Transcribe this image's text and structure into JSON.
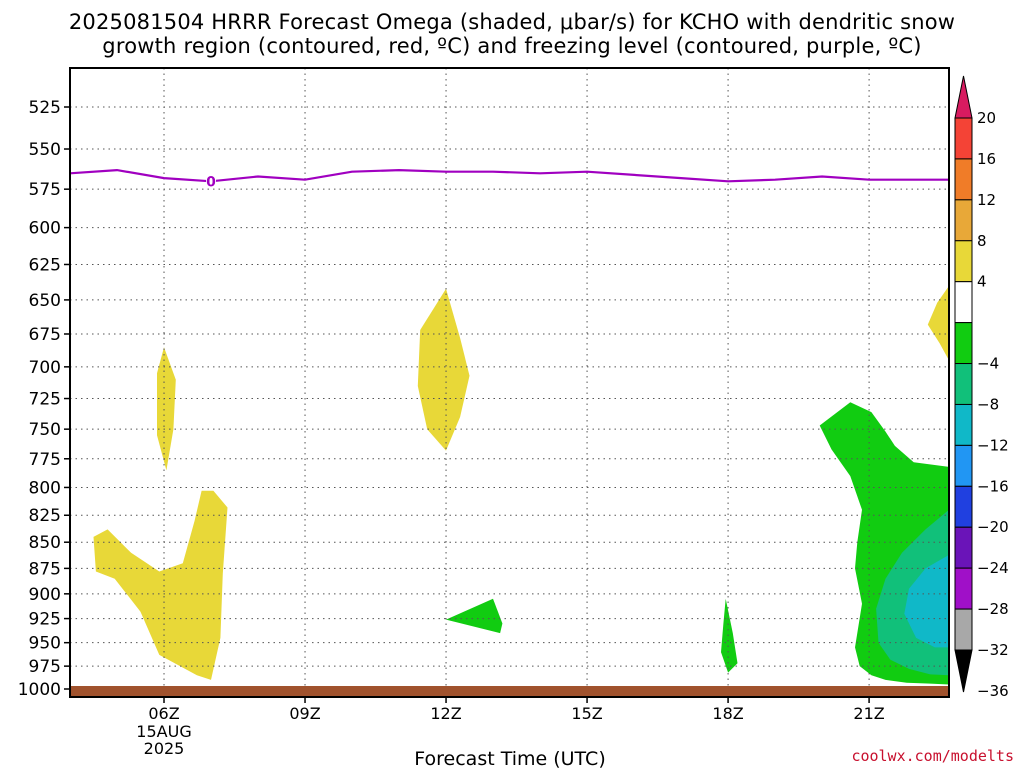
{
  "title_line1": "2025081504 HRRR Forecast Omega (shaded, μbar/s) for KCHO with dendritic snow",
  "title_line2": "growth region (contoured, red, ºC) and freezing level (contoured, purple, ºC)",
  "credit": "coolwx.com/modelts",
  "colors": {
    "freezing_level": "#a000c0",
    "ground": "#a0522d",
    "grid": "#555555"
  },
  "chart_data": {
    "type": "heatmap",
    "title": "2025081504 HRRR Forecast Omega (shaded, μbar/s) for KCHO with dendritic snow growth region (contoured, red, ºC) and freezing level (contoured, purple, ºC)",
    "xlabel": "Forecast Time (UTC)",
    "ylabel": "",
    "x_axis": {
      "unit": "forecast hour UTC (04Z 15 Aug 2025 to ~22.7Z)",
      "range": [
        4.0,
        22.7
      ],
      "ticks": [
        {
          "hour": 6,
          "label": "06Z",
          "sublabel": [
            "15AUG",
            "2025"
          ]
        },
        {
          "hour": 9,
          "label": "09Z"
        },
        {
          "hour": 12,
          "label": "12Z"
        },
        {
          "hour": 15,
          "label": "15Z"
        },
        {
          "hour": 18,
          "label": "18Z"
        },
        {
          "hour": 21,
          "label": "21Z"
        }
      ]
    },
    "y_axis": {
      "unit": "hPa",
      "scale": "log-pressure",
      "range": [
        1000,
        510
      ],
      "ticks": [
        525,
        550,
        575,
        600,
        625,
        650,
        675,
        700,
        725,
        750,
        775,
        800,
        825,
        850,
        875,
        900,
        925,
        950,
        975,
        1000
      ]
    },
    "grid": true,
    "colorbar": {
      "label_values": [
        20,
        16,
        12,
        8,
        4,
        -4,
        -8,
        -12,
        -16,
        -20,
        -24,
        -28,
        -32,
        -36
      ],
      "bins": [
        {
          "lo": 20,
          "hi": null,
          "color": "#d81b60"
        },
        {
          "lo": 16,
          "hi": 20,
          "color": "#f44336"
        },
        {
          "lo": 12,
          "hi": 16,
          "color": "#f07c28"
        },
        {
          "lo": 8,
          "hi": 12,
          "color": "#e8a838"
        },
        {
          "lo": 4,
          "hi": 8,
          "color": "#e8d838"
        },
        {
          "lo": -4,
          "hi": 4,
          "color": "#ffffff"
        },
        {
          "lo": -8,
          "hi": -4,
          "color": "#11cc11"
        },
        {
          "lo": -12,
          "hi": -8,
          "color": "#11c07a"
        },
        {
          "lo": -16,
          "hi": -12,
          "color": "#10b8c8"
        },
        {
          "lo": -20,
          "hi": -16,
          "color": "#2196f3"
        },
        {
          "lo": -24,
          "hi": -20,
          "color": "#2040e0"
        },
        {
          "lo": -28,
          "hi": -24,
          "color": "#6a14b8"
        },
        {
          "lo": -32,
          "hi": -28,
          "color": "#a010c8"
        },
        {
          "lo": -36,
          "hi": -32,
          "color": "#a8a8a8"
        },
        {
          "lo": null,
          "hi": -36,
          "color": "#000000"
        }
      ]
    },
    "freezing_level": {
      "label": "0",
      "label_at": {
        "hour": 7.0,
        "p": 570
      },
      "points": [
        [
          4.0,
          565
        ],
        [
          5.0,
          563
        ],
        [
          6.0,
          568
        ],
        [
          7.0,
          570
        ],
        [
          8.0,
          567
        ],
        [
          9.0,
          569
        ],
        [
          10.0,
          564
        ],
        [
          11.0,
          563
        ],
        [
          12.0,
          564
        ],
        [
          13.0,
          564
        ],
        [
          14.0,
          565
        ],
        [
          15.0,
          564
        ],
        [
          16.0,
          566
        ],
        [
          17.0,
          568
        ],
        [
          18.0,
          570
        ],
        [
          19.0,
          569
        ],
        [
          20.0,
          567
        ],
        [
          21.0,
          569
        ],
        [
          22.7,
          569
        ]
      ]
    },
    "ground": {
      "pressure": 1000
    },
    "regions": [
      {
        "value": 5,
        "points": [
          [
            6.0,
            685
          ],
          [
            6.25,
            710
          ],
          [
            6.2,
            750
          ],
          [
            6.05,
            785
          ],
          [
            5.85,
            755
          ],
          [
            5.85,
            705
          ]
        ]
      },
      {
        "value": 5,
        "points": [
          [
            4.8,
            838
          ],
          [
            5.3,
            860
          ],
          [
            5.9,
            878
          ],
          [
            6.4,
            870
          ],
          [
            6.65,
            830
          ],
          [
            6.8,
            803
          ],
          [
            7.05,
            803
          ],
          [
            7.35,
            818
          ],
          [
            7.25,
            880
          ],
          [
            7.2,
            945
          ],
          [
            7.0,
            990
          ],
          [
            6.7,
            985
          ],
          [
            5.9,
            963
          ],
          [
            5.5,
            918
          ],
          [
            4.95,
            885
          ],
          [
            4.55,
            878
          ],
          [
            4.5,
            845
          ]
        ]
      },
      {
        "value": 5,
        "points": [
          [
            12.0,
            642
          ],
          [
            12.3,
            678
          ],
          [
            12.5,
            707
          ],
          [
            12.3,
            740
          ],
          [
            12.0,
            768
          ],
          [
            11.6,
            750
          ],
          [
            11.4,
            715
          ],
          [
            11.45,
            672
          ]
        ]
      },
      {
        "value": 5,
        "points": [
          [
            22.7,
            640
          ],
          [
            22.7,
            695
          ],
          [
            22.5,
            682
          ],
          [
            22.25,
            668
          ],
          [
            22.45,
            652
          ]
        ]
      },
      {
        "value": -6,
        "points": [
          [
            12.0,
            926
          ],
          [
            13.0,
            905
          ],
          [
            13.2,
            930
          ],
          [
            13.15,
            940
          ]
        ]
      },
      {
        "value": -6,
        "points": [
          [
            17.95,
            905
          ],
          [
            18.1,
            940
          ],
          [
            18.2,
            972
          ],
          [
            18.0,
            982
          ],
          [
            17.85,
            960
          ],
          [
            17.9,
            930
          ]
        ]
      },
      {
        "value": -6,
        "points": [
          [
            19.95,
            747
          ],
          [
            20.6,
            728
          ],
          [
            21.05,
            736
          ],
          [
            21.35,
            752
          ],
          [
            21.55,
            764
          ],
          [
            21.95,
            778
          ],
          [
            22.7,
            782
          ],
          [
            22.7,
            995
          ],
          [
            22.3,
            994
          ],
          [
            21.8,
            993
          ],
          [
            21.35,
            990
          ],
          [
            21.05,
            985
          ],
          [
            20.8,
            975
          ],
          [
            20.7,
            955
          ],
          [
            20.85,
            910
          ],
          [
            20.7,
            875
          ],
          [
            20.75,
            850
          ],
          [
            20.85,
            820
          ],
          [
            20.6,
            790
          ],
          [
            20.2,
            767
          ]
        ]
      },
      {
        "value": -10,
        "points": [
          [
            22.7,
            820
          ],
          [
            22.7,
            985
          ],
          [
            22.3,
            984
          ],
          [
            21.85,
            978
          ],
          [
            21.45,
            968
          ],
          [
            21.2,
            950
          ],
          [
            21.15,
            915
          ],
          [
            21.35,
            885
          ],
          [
            21.7,
            860
          ],
          [
            22.2,
            838
          ]
        ]
      },
      {
        "value": -14,
        "points": [
          [
            22.7,
            862
          ],
          [
            22.7,
            955
          ],
          [
            22.4,
            955
          ],
          [
            22.0,
            945
          ],
          [
            21.75,
            920
          ],
          [
            21.85,
            895
          ],
          [
            22.2,
            875
          ]
        ]
      }
    ]
  }
}
